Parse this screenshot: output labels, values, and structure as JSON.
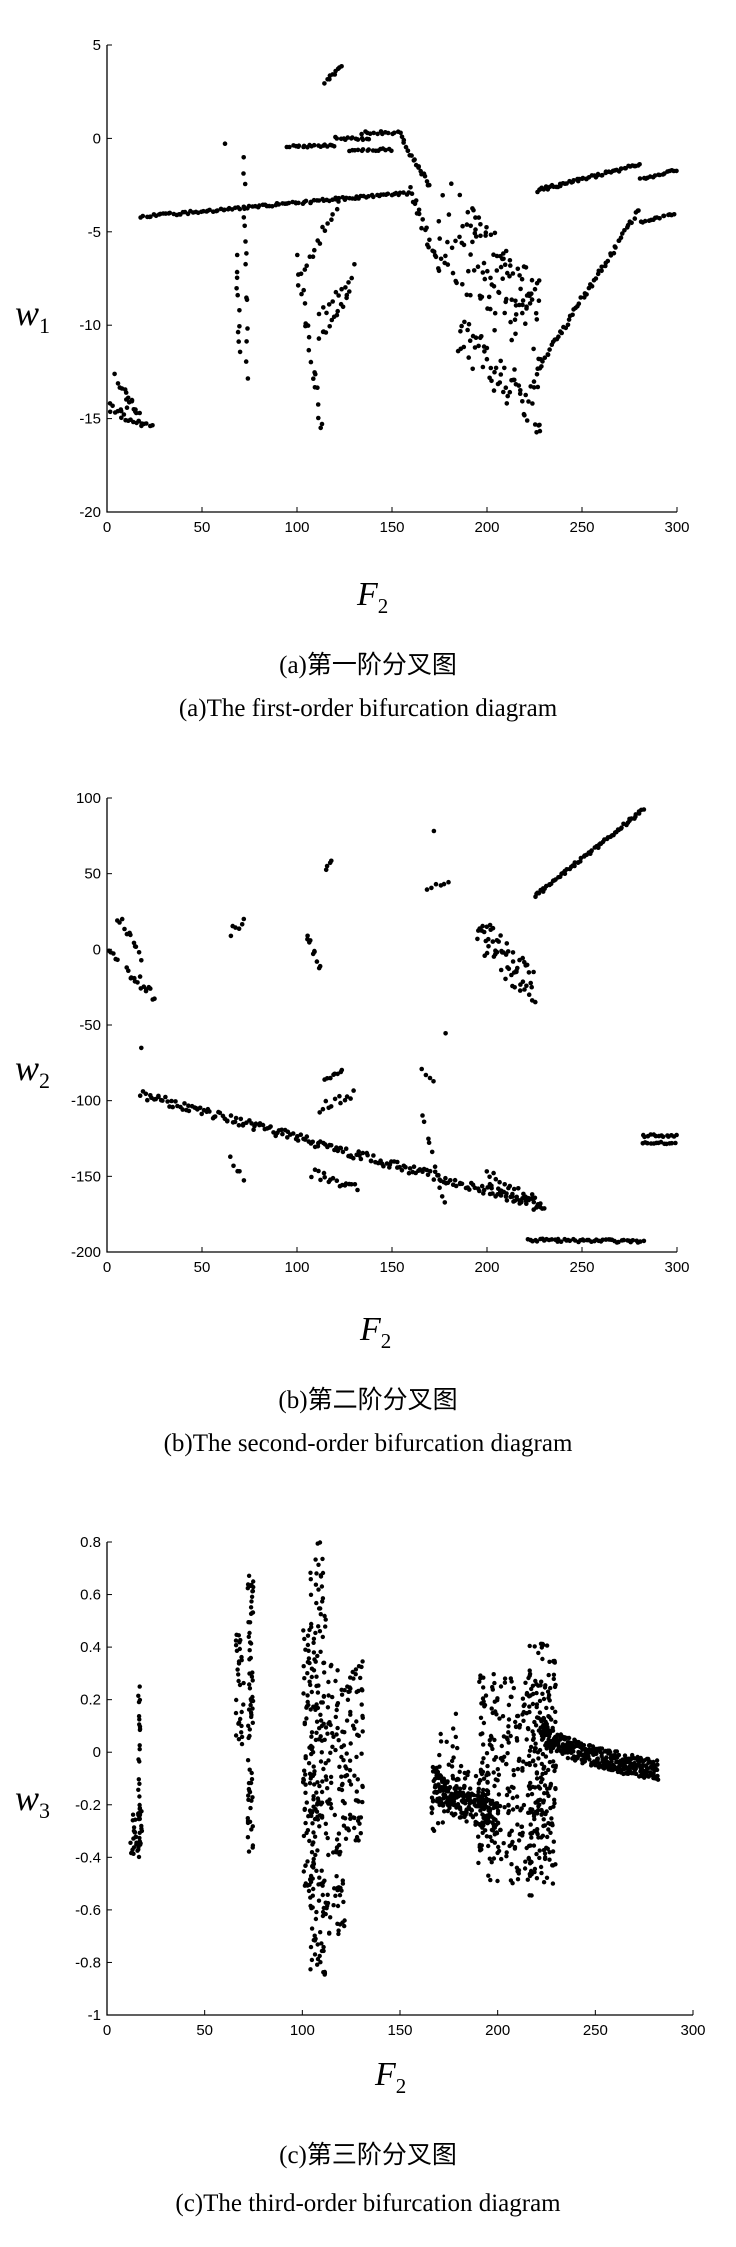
{
  "charts": {
    "c1": {
      "caption_cn": "(a)第一阶分叉图",
      "caption_en": "(a)The first-order bifurcation diagram",
      "ylabel_main": "w",
      "ylabel_sub": "1",
      "xlabel_main": "F",
      "xlabel_sub": "2"
    },
    "c2": {
      "caption_cn": "(b)第二阶分叉图",
      "caption_en": "(b)The second-order bifurcation diagram",
      "ylabel_main": "w",
      "ylabel_sub": "2",
      "xlabel_main": "F",
      "xlabel_sub": "2"
    },
    "c3": {
      "caption_cn": "(c)第三阶分叉图",
      "caption_en": "(c)The third-order bifurcation diagram",
      "ylabel_main": "w",
      "ylabel_sub": "3",
      "xlabel_main": "F",
      "xlabel_sub": "2"
    }
  },
  "chart_data": [
    {
      "type": "scatter",
      "xlabel": "F2",
      "ylabel": "w1",
      "xlim": [
        0,
        300
      ],
      "ylim": [
        -20,
        5
      ],
      "xticks": [
        0,
        50,
        100,
        150,
        200,
        250,
        300
      ],
      "yticks": [
        -20,
        -15,
        -10,
        -5,
        0,
        5
      ],
      "marker_color": "#000000",
      "branches": [
        {
          "x": [
            0,
            10
          ],
          "y": [
            -14.4,
            -14.6
          ],
          "n": 10,
          "spread": 0.25
        },
        {
          "x": [
            4,
            18
          ],
          "y": [
            -12.8,
            -15.1
          ],
          "n": 12,
          "spread": 0.2
        },
        {
          "x": [
            8,
            24
          ],
          "y": [
            -14.9,
            -15.5
          ],
          "n": 12,
          "spread": 0.15
        },
        {
          "x": [
            10,
            16
          ],
          "y": [
            -13.8,
            -14.8
          ],
          "n": 5,
          "spread": 0.3
        },
        {
          "x": [
            18,
            160
          ],
          "y": [
            -4.2,
            -2.9
          ],
          "n": 110,
          "spread": 0.08
        },
        {
          "x": [
            62,
            62
          ],
          "y": [
            -0.3,
            -0.3
          ],
          "n": 1,
          "spread": 0.1
        },
        {
          "x": [
            68,
            70
          ],
          "y": [
            -6.2,
            -11.5
          ],
          "n": 10,
          "spread": 0.4
        },
        {
          "x": [
            72,
            74
          ],
          "y": [
            -1.2,
            -12.5
          ],
          "n": 14,
          "spread": 0.6
        },
        {
          "x": [
            95,
            120
          ],
          "y": [
            -0.4,
            -0.4
          ],
          "n": 20,
          "spread": 0.08
        },
        {
          "x": [
            100,
            113
          ],
          "y": [
            -6.5,
            -15.7
          ],
          "n": 22,
          "spread": 0.7
        },
        {
          "x": [
            104,
            122
          ],
          "y": [
            -7.2,
            -3.2
          ],
          "n": 14,
          "spread": 0.3
        },
        {
          "x": [
            112,
            128
          ],
          "y": [
            -10.8,
            -8.2
          ],
          "n": 14,
          "spread": 0.25
        },
        {
          "x": [
            112,
            130
          ],
          "y": [
            -9.5,
            -7.0
          ],
          "n": 12,
          "spread": 0.3
        },
        {
          "x": [
            115,
            123
          ],
          "y": [
            3.0,
            3.9
          ],
          "n": 10,
          "spread": 0.1
        },
        {
          "x": [
            120,
            138
          ],
          "y": [
            0.0,
            0.0
          ],
          "n": 14,
          "spread": 0.08
        },
        {
          "x": [
            128,
            150
          ],
          "y": [
            -0.6,
            -0.6
          ],
          "n": 16,
          "spread": 0.08
        },
        {
          "x": [
            134,
            155
          ],
          "y": [
            0.3,
            0.3
          ],
          "n": 14,
          "spread": 0.08
        },
        {
          "x": [
            155,
            170
          ],
          "y": [
            0.0,
            -2.5
          ],
          "n": 20,
          "spread": 0.15
        },
        {
          "x": [
            160,
            175
          ],
          "y": [
            -3.0,
            -7.0
          ],
          "n": 20,
          "spread": 0.4
        },
        {
          "x": [
            175,
            228
          ],
          "y": [
            -4.0,
            -11.0
          ],
          "n": 80,
          "spread": 2.5
        },
        {
          "x": [
            185,
            228
          ],
          "y": [
            -10.5,
            -14.8
          ],
          "n": 60,
          "spread": 1.2
        },
        {
          "x": [
            190,
            228
          ],
          "y": [
            -5.0,
            -9.0
          ],
          "n": 40,
          "spread": 1.5
        },
        {
          "x": [
            226,
            280
          ],
          "y": [
            -12.5,
            -3.8
          ],
          "n": 60,
          "spread": 0.15
        },
        {
          "x": [
            226,
            280
          ],
          "y": [
            -2.8,
            -1.4
          ],
          "n": 55,
          "spread": 0.1
        },
        {
          "x": [
            281,
            300
          ],
          "y": [
            -4.5,
            -4.0
          ],
          "n": 16,
          "spread": 0.06
        },
        {
          "x": [
            281,
            300
          ],
          "y": [
            -2.2,
            -1.7
          ],
          "n": 16,
          "spread": 0.06
        }
      ]
    },
    {
      "type": "scatter",
      "xlabel": "F2",
      "ylabel": "w2",
      "xlim": [
        0,
        300
      ],
      "ylim": [
        -200,
        100
      ],
      "xticks": [
        0,
        50,
        100,
        150,
        200,
        250,
        300
      ],
      "yticks": [
        -200,
        -150,
        -100,
        -50,
        0,
        50,
        100
      ],
      "marker_color": "#000000",
      "branches": [
        {
          "x": [
            0,
            5
          ],
          "y": [
            0,
            -6
          ],
          "n": 6,
          "spread": 2
        },
        {
          "x": [
            6,
            18
          ],
          "y": [
            22,
            -5
          ],
          "n": 12,
          "spread": 3
        },
        {
          "x": [
            10,
            25
          ],
          "y": [
            -15,
            -32
          ],
          "n": 16,
          "spread": 5
        },
        {
          "x": [
            18,
            18
          ],
          "y": [
            -65,
            -65
          ],
          "n": 1,
          "spread": 1
        },
        {
          "x": [
            18,
            230
          ],
          "y": [
            -96,
            -170
          ],
          "n": 200,
          "spread": 3
        },
        {
          "x": [
            65,
            72
          ],
          "y": [
            10,
            20
          ],
          "n": 6,
          "spread": 4
        },
        {
          "x": [
            65,
            72
          ],
          "y": [
            -140,
            -150
          ],
          "n": 5,
          "spread": 3
        },
        {
          "x": [
            105,
            112
          ],
          "y": [
            10,
            -12
          ],
          "n": 10,
          "spread": 5
        },
        {
          "x": [
            108,
            132
          ],
          "y": [
            -148,
            -158
          ],
          "n": 18,
          "spread": 3
        },
        {
          "x": [
            115,
            118
          ],
          "y": [
            53,
            58
          ],
          "n": 4,
          "spread": 1
        },
        {
          "x": [
            112,
            130
          ],
          "y": [
            -105,
            -95
          ],
          "n": 12,
          "spread": 3
        },
        {
          "x": [
            115,
            124
          ],
          "y": [
            -86,
            -80
          ],
          "n": 8,
          "spread": 1
        },
        {
          "x": [
            166,
            172
          ],
          "y": [
            -80,
            -88
          ],
          "n": 4,
          "spread": 2
        },
        {
          "x": [
            168,
            180
          ],
          "y": [
            40,
            45
          ],
          "n": 6,
          "spread": 1.5
        },
        {
          "x": [
            172,
            172
          ],
          "y": [
            78,
            78
          ],
          "n": 1,
          "spread": 1
        },
        {
          "x": [
            166,
            178
          ],
          "y": [
            -110,
            -168
          ],
          "n": 10,
          "spread": 3
        },
        {
          "x": [
            178,
            178
          ],
          "y": [
            -55,
            -55
          ],
          "n": 1,
          "spread": 1
        },
        {
          "x": [
            195,
            225
          ],
          "y": [
            10,
            -25
          ],
          "n": 60,
          "spread": 14
        },
        {
          "x": [
            200,
            228
          ],
          "y": [
            -150,
            -170
          ],
          "n": 30,
          "spread": 5
        },
        {
          "x": [
            225,
            282
          ],
          "y": [
            35,
            92
          ],
          "n": 70,
          "spread": 1
        },
        {
          "x": [
            222,
            282
          ],
          "y": [
            -192,
            -193
          ],
          "n": 50,
          "spread": 1
        },
        {
          "x": [
            282,
            300
          ],
          "y": [
            -123,
            -123
          ],
          "n": 14,
          "spread": 1
        },
        {
          "x": [
            282,
            300
          ],
          "y": [
            -128,
            -128
          ],
          "n": 14,
          "spread": 1
        }
      ]
    },
    {
      "type": "scatter",
      "xlabel": "F2",
      "ylabel": "w3",
      "xlim": [
        0,
        300
      ],
      "ylim": [
        -1,
        0.8
      ],
      "xticks": [
        0,
        50,
        100,
        150,
        200,
        250,
        300
      ],
      "yticks": [
        -1,
        -0.8,
        -0.6,
        -0.4,
        -0.2,
        0,
        0.2,
        0.4,
        0.6,
        0.8
      ],
      "marker_color": "#000000",
      "bands": [
        {
          "x": [
            12,
            18
          ],
          "ymin": -0.4,
          "ymax": -0.22,
          "n": 30
        },
        {
          "x": [
            16,
            17
          ],
          "ymin": -0.4,
          "ymax": 0.25,
          "n": 30
        },
        {
          "x": [
            66,
            70
          ],
          "ymin": 0.0,
          "ymax": 0.45,
          "n": 30
        },
        {
          "x": [
            72,
            75
          ],
          "ymin": -0.38,
          "ymax": 0.68,
          "n": 70
        },
        {
          "x": [
            100,
            106
          ],
          "ymin": -0.6,
          "ymax": 0.5,
          "n": 80
        },
        {
          "x": [
            104,
            112
          ],
          "ymin": -0.85,
          "ymax": 0.8,
          "n": 160
        },
        {
          "x": [
            112,
            122
          ],
          "ymin": -0.7,
          "ymax": 0.35,
          "n": 100
        },
        {
          "x": [
            122,
            131
          ],
          "ymin": -0.35,
          "ymax": 0.35,
          "n": 70
        },
        {
          "x": [
            166,
            172
          ],
          "ymin": -0.3,
          "ymax": -0.05,
          "n": 30
        },
        {
          "x": [
            170,
            180
          ],
          "ymin": -0.25,
          "ymax": 0.15,
          "n": 30
        },
        {
          "x": [
            180,
            195
          ],
          "ymin": -0.2,
          "ymax": -0.05,
          "n": 30
        },
        {
          "x": [
            190,
            230
          ],
          "ymin": -0.5,
          "ymax": 0.3,
          "n": 320
        },
        {
          "x": [
            216,
            230
          ],
          "ymin": -0.55,
          "ymax": 0.42,
          "n": 120
        }
      ],
      "curves": [
        {
          "x": [
            168,
            200
          ],
          "y": [
            -0.1,
            -0.25
          ],
          "n": 60,
          "spread": 0.06
        },
        {
          "x": [
            222,
            282
          ],
          "y": [
            0.1,
            -0.07
          ],
          "n": 120,
          "spread": 0.04
        }
      ]
    }
  ]
}
